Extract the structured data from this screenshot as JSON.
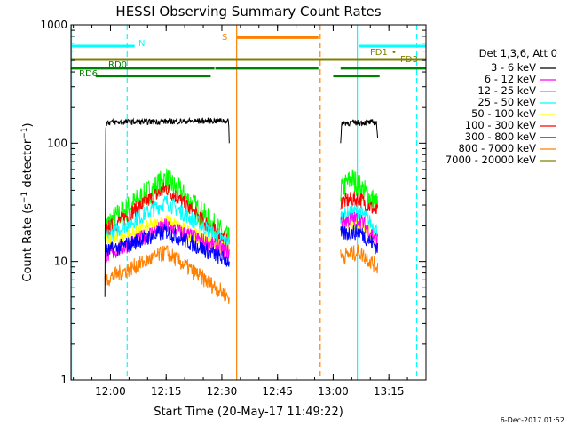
{
  "chart_data": {
    "type": "line",
    "title": "HESSI Observing Summary Count Rates",
    "xlabel": "Start Time (20-May-17 11:49:22)",
    "ylabel_parts": [
      "Count Rate (s",
      "−1",
      " detector",
      "−1",
      ")"
    ],
    "yscale": "log",
    "ylim": [
      1,
      1000
    ],
    "xlim": [
      "11:49:22",
      "13:25:00"
    ],
    "x_ticks": [
      "12:00",
      "12:15",
      "12:30",
      "12:45",
      "13:00",
      "13:15"
    ],
    "y_ticks": [
      "1",
      "10",
      "100",
      "1000"
    ],
    "legend_title": "Det 1,3,6, Att 0",
    "series": [
      {
        "name": "3 - 6 keV",
        "color": "#000000",
        "segments": [
          {
            "x": [
              "11:58:30",
              "11:58:45",
              "12:31:50",
              "12:32:00"
            ],
            "y": [
              5,
              150,
              155,
              100
            ]
          },
          {
            "x": [
              "13:02:00",
              "13:02:20",
              "13:11:40",
              "13:12:00"
            ],
            "y": [
              100,
              148,
              150,
              110
            ]
          }
        ]
      },
      {
        "name": "6 - 12 keV",
        "color": "#ff00ff",
        "segments": [
          {
            "x": [
              "11:58:30",
              "12:15:00",
              "12:32:00"
            ],
            "y": [
              11,
              20,
              12
            ]
          },
          {
            "x": [
              "13:02:00",
              "13:07:00",
              "13:12:00"
            ],
            "y": [
              22,
              23,
              15
            ]
          }
        ]
      },
      {
        "name": "12 - 25 keV",
        "color": "#00ff00",
        "segments": [
          {
            "x": [
              "11:58:30",
              "12:15:00",
              "12:32:00"
            ],
            "y": [
              20,
              50,
              15
            ]
          },
          {
            "x": [
              "13:02:00",
              "13:05:00",
              "13:12:00"
            ],
            "y": [
              40,
              50,
              30
            ]
          }
        ]
      },
      {
        "name": "25 - 50 keV",
        "color": "#00ffff",
        "segments": [
          {
            "x": [
              "11:58:30",
              "12:15:00",
              "12:32:00"
            ],
            "y": [
              16,
              32,
              14
            ]
          },
          {
            "x": [
              "13:02:00",
              "13:07:00",
              "13:12:00"
            ],
            "y": [
              24,
              27,
              18
            ]
          }
        ]
      },
      {
        "name": "50 - 100 keV",
        "color": "#ffff00",
        "segments": [
          {
            "x": [
              "11:58:30",
              "12:15:00",
              "12:32:00"
            ],
            "y": [
              14,
              22,
              12
            ]
          },
          {
            "x": [
              "13:02:00",
              "13:07:00",
              "13:12:00"
            ],
            "y": [
              20,
              22,
              15
            ]
          }
        ]
      },
      {
        "name": "100 - 300 keV",
        "color": "#ff0000",
        "segments": [
          {
            "x": [
              "11:58:30",
              "12:15:00",
              "12:32:00"
            ],
            "y": [
              18,
              42,
              14
            ]
          },
          {
            "x": [
              "13:02:00",
              "13:07:00",
              "13:12:00"
            ],
            "y": [
              32,
              34,
              26
            ]
          }
        ]
      },
      {
        "name": "300 - 800 keV",
        "color": "#0000ff",
        "segments": [
          {
            "x": [
              "11:58:30",
              "12:15:00",
              "12:32:00"
            ],
            "y": [
              12,
              18,
              10
            ]
          },
          {
            "x": [
              "13:02:00",
              "13:07:00",
              "13:12:00"
            ],
            "y": [
              17,
              18,
              13
            ]
          }
        ]
      },
      {
        "name": "800 - 7000 keV",
        "color": "#ff8000",
        "segments": [
          {
            "x": [
              "11:58:30",
              "12:15:00",
              "12:32:00"
            ],
            "y": [
              7,
              12,
              5
            ]
          },
          {
            "x": [
              "13:02:00",
              "13:07:00",
              "13:12:00"
            ],
            "y": [
              11,
              12,
              9
            ]
          }
        ]
      },
      {
        "name": "7000 - 20000 keV",
        "color": "#808000",
        "segments": []
      }
    ],
    "annotations": [
      {
        "label": "N",
        "color": "#00ffff",
        "y": 660,
        "x_start": "11:49:22",
        "x_end": "12:06:30"
      },
      {
        "label": "S",
        "color": "#ff8000",
        "y": 780,
        "x_start": "12:34:00",
        "x_end": "12:56:00"
      },
      {
        "label": "N",
        "color": "#00ffff",
        "y": 660,
        "x_start": "13:07:00",
        "x_end": "13:25:00"
      },
      {
        "label": "FD1",
        "color": "#808000",
        "y": 510,
        "x_start": "11:49:22",
        "x_end": "13:25:00"
      },
      {
        "label": "FD3",
        "color": "#808000",
        "y": 510,
        "x_start": "11:49:22",
        "x_end": "13:25:00"
      },
      {
        "label": "RD0",
        "color": "#008000",
        "y": 430,
        "x_start": "11:49:22",
        "x_end": "13:25:00"
      },
      {
        "label": "RD6",
        "color": "#008000",
        "y": 370,
        "x_start": "11:56:00",
        "x_end": "13:13:00"
      }
    ],
    "vlines": [
      {
        "x": "11:49:30",
        "color": "#00ffff",
        "style": "solid"
      },
      {
        "x": "12:04:30",
        "color": "#00ffff",
        "style": "dashed"
      },
      {
        "x": "12:34:00",
        "color": "#ff8000",
        "style": "solid"
      },
      {
        "x": "12:56:30",
        "color": "#ff8000",
        "style": "dashed"
      },
      {
        "x": "13:06:30",
        "color": "#00ffff",
        "style": "solid"
      },
      {
        "x": "13:22:30",
        "color": "#00ffff",
        "style": "dashed"
      }
    ],
    "footer": "6-Dec-2017 01:52"
  }
}
